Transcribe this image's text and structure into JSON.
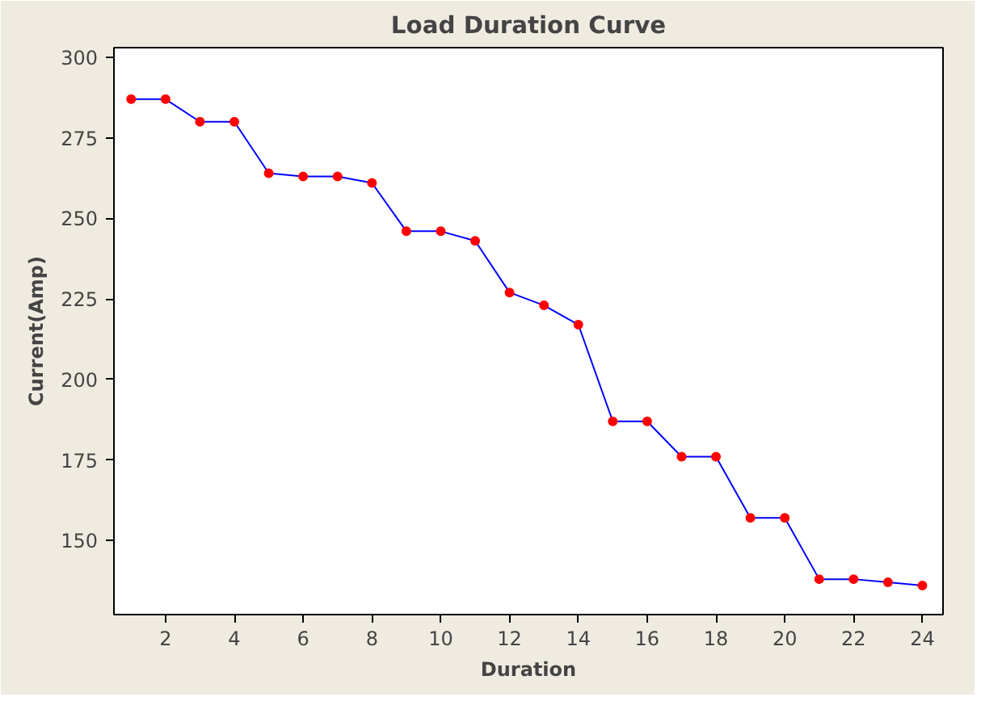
{
  "chart_data": {
    "type": "line",
    "title": "Load Duration Curve",
    "xlabel": "Duration",
    "ylabel": "Current(Amp)",
    "x": [
      1,
      2,
      3,
      4,
      5,
      6,
      7,
      8,
      9,
      10,
      11,
      12,
      13,
      14,
      15,
      16,
      17,
      18,
      19,
      20,
      21,
      22,
      23,
      24
    ],
    "series": [
      {
        "color": "#0000ff",
        "values": [
          287,
          287,
          280,
          280,
          264,
          263,
          263,
          261,
          246,
          246,
          243,
          227,
          223,
          217,
          187,
          187,
          176,
          176,
          157,
          157,
          138,
          138,
          137,
          136
        ]
      }
    ],
    "marker": "circle",
    "line_style": "solid",
    "grid": false,
    "xlim": [
      0.5,
      24.6
    ],
    "ylim": [
      127,
      303
    ],
    "xticks": [
      2,
      4,
      6,
      8,
      10,
      12,
      14,
      16,
      18,
      20,
      22,
      24
    ],
    "yticks": [
      150,
      175,
      200,
      225,
      250,
      275,
      300
    ]
  }
}
